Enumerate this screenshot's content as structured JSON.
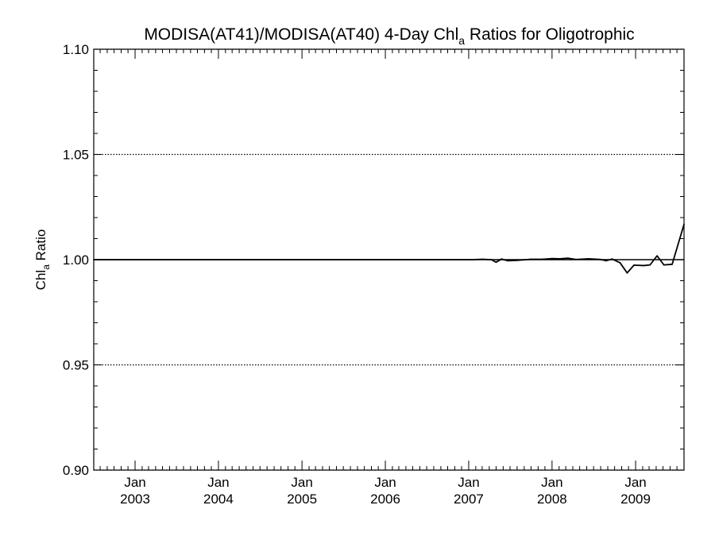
{
  "chart_data": {
    "type": "line",
    "title": {
      "prefix": "MODISA(AT41)/MODISA(AT40) 4-Day Chl",
      "subscript": "a",
      "suffix": " Ratios for Oligotrophic"
    },
    "ylabel": {
      "prefix": "Chl",
      "subscript": "a",
      "suffix": " Ratio"
    },
    "xlim": [
      "2002-07-04",
      "2009-08-01"
    ],
    "ylim": [
      0.9,
      1.1
    ],
    "yticks": [
      {
        "value": 0.9,
        "label": "0.90"
      },
      {
        "value": 0.95,
        "label": "0.95"
      },
      {
        "value": 1.0,
        "label": "1.00"
      },
      {
        "value": 1.05,
        "label": "1.05"
      },
      {
        "value": 1.1,
        "label": "1.10"
      }
    ],
    "xticks": [
      {
        "date": "2003-01-01",
        "month": "Jan",
        "year": "2003"
      },
      {
        "date": "2004-01-01",
        "month": "Jan",
        "year": "2004"
      },
      {
        "date": "2005-01-01",
        "month": "Jan",
        "year": "2005"
      },
      {
        "date": "2006-01-01",
        "month": "Jan",
        "year": "2006"
      },
      {
        "date": "2007-01-01",
        "month": "Jan",
        "year": "2007"
      },
      {
        "date": "2008-01-01",
        "month": "Jan",
        "year": "2008"
      },
      {
        "date": "2009-01-01",
        "month": "Jan",
        "year": "2009"
      }
    ],
    "grid": "horizontal dotted at major y ticks",
    "reference_line": 1.0,
    "series": [
      {
        "color": "#000000",
        "points": [
          {
            "x": "2002-07-04",
            "y": 1.0
          },
          {
            "x": "2007-01-15",
            "y": 1.0
          },
          {
            "x": "2007-03-01",
            "y": 1.0002
          },
          {
            "x": "2007-04-10",
            "y": 1.0
          },
          {
            "x": "2007-05-01",
            "y": 0.9988
          },
          {
            "x": "2007-05-25",
            "y": 1.0003
          },
          {
            "x": "2007-06-20",
            "y": 0.9995
          },
          {
            "x": "2007-08-01",
            "y": 0.9997
          },
          {
            "x": "2007-10-01",
            "y": 1.0002
          },
          {
            "x": "2007-11-20",
            "y": 1.0002
          },
          {
            "x": "2008-01-01",
            "y": 1.0005
          },
          {
            "x": "2008-02-05",
            "y": 1.0004
          },
          {
            "x": "2008-03-10",
            "y": 1.0007
          },
          {
            "x": "2008-04-15",
            "y": 1.0001
          },
          {
            "x": "2008-06-10",
            "y": 1.0004
          },
          {
            "x": "2008-08-01",
            "y": 1.0001
          },
          {
            "x": "2008-08-25",
            "y": 0.9995
          },
          {
            "x": "2008-09-20",
            "y": 1.0003
          },
          {
            "x": "2008-10-25",
            "y": 0.9985
          },
          {
            "x": "2008-11-25",
            "y": 0.9937
          },
          {
            "x": "2008-12-25",
            "y": 0.9974
          },
          {
            "x": "2009-02-05",
            "y": 0.9972
          },
          {
            "x": "2009-03-05",
            "y": 0.9975
          },
          {
            "x": "2009-04-05",
            "y": 1.0018
          },
          {
            "x": "2009-05-05",
            "y": 0.9975
          },
          {
            "x": "2009-06-10",
            "y": 0.9978
          },
          {
            "x": "2009-08-01",
            "y": 1.0168
          }
        ]
      }
    ]
  }
}
